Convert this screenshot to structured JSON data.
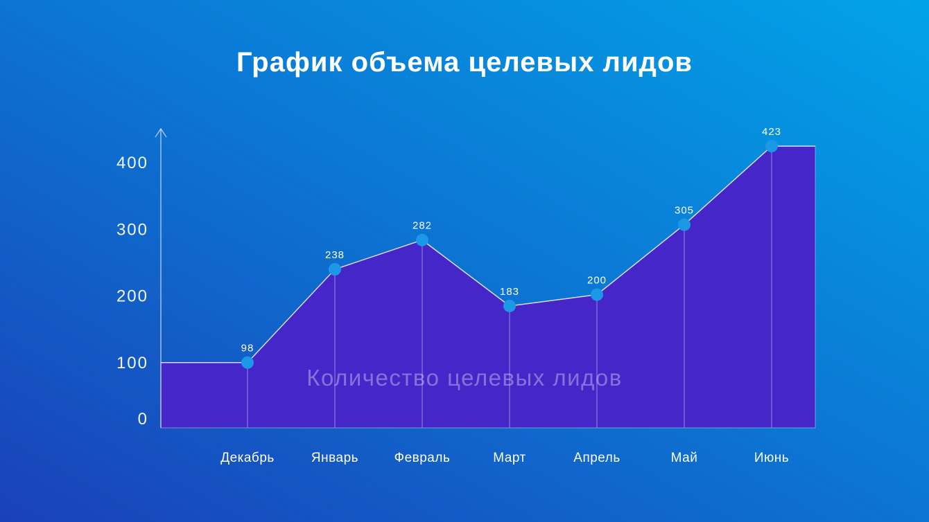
{
  "title": "График объема целевых лидов",
  "background": {
    "gradient_start": "#1A41B8",
    "gradient_mid": "#0C74D3",
    "gradient_end": "#02A3E8"
  },
  "chart_data": {
    "type": "area",
    "title": "График объема целевых лидов",
    "categories": [
      "Декабрь",
      "Январь",
      "Февраль",
      "Март",
      "Апрель",
      "Май",
      "Июнь"
    ],
    "values": [
      98,
      238,
      282,
      183,
      200,
      305,
      423
    ],
    "series_label": "Количество целевых лидов",
    "yticks": [
      400,
      300,
      200,
      100,
      0
    ],
    "ylim": [
      0,
      440
    ],
    "xlabel": "",
    "ylabel": "",
    "grid": false,
    "legend_position": "none",
    "colors": {
      "area_fill": "#4526C8",
      "area_edge": "rgba(255,255,255,0.4)",
      "data_line": "rgba(255,255,255,0.75)",
      "drop_line": "rgba(255,255,255,0.45)",
      "point_fill": "#1C99E6",
      "axis_line": "rgba(255,255,255,0.6)",
      "tick_text": "#FFFFFF",
      "value_text": "#FFFFFF",
      "watermark_text": "rgba(255,255,255,0.35)"
    }
  }
}
